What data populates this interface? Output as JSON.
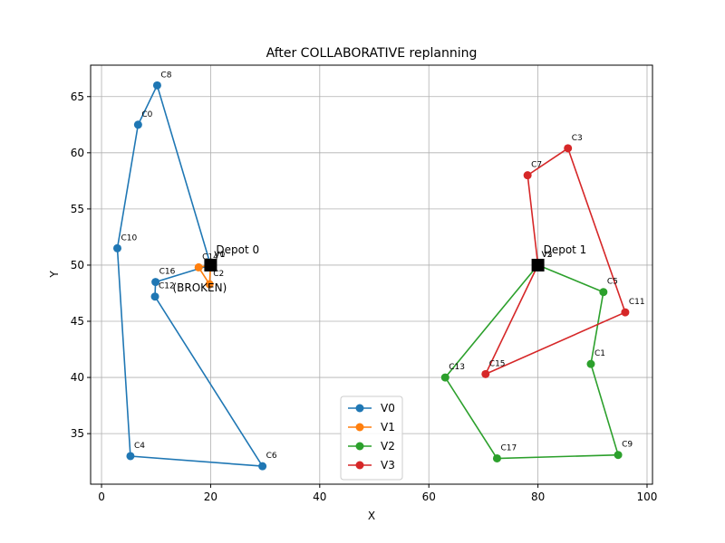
{
  "chart_data": {
    "type": "line",
    "title": "After COLLABORATIVE replanning",
    "xlabel": "X",
    "ylabel": "Y",
    "xlim": [
      -2,
      101
    ],
    "ylim": [
      30.5,
      67.8
    ],
    "xticks": [
      0,
      20,
      40,
      60,
      80,
      100
    ],
    "yticks": [
      35,
      40,
      45,
      50,
      55,
      60,
      65
    ],
    "grid": true,
    "legend_position": "bottom-center",
    "depots": [
      {
        "name": "Depot 0",
        "x": 20.0,
        "y": 50.0
      },
      {
        "name": "Depot 1",
        "x": 80.0,
        "y": 50.0
      }
    ],
    "annotations": [
      {
        "text": "(BROKEN)",
        "x": 18.0,
        "y": 48.0,
        "color": "#ff0000"
      }
    ],
    "series": [
      {
        "name": "V0",
        "color": "#1f77b4",
        "points": [
          {
            "x": 20.0,
            "y": 50.0,
            "label": ""
          },
          {
            "x": 10.2,
            "y": 66.0,
            "label": "C8"
          },
          {
            "x": 6.7,
            "y": 62.5,
            "label": "C0"
          },
          {
            "x": 2.9,
            "y": 51.5,
            "label": "C10"
          },
          {
            "x": 5.3,
            "y": 33.0,
            "label": "C4"
          },
          {
            "x": 29.5,
            "y": 32.1,
            "label": "C6"
          },
          {
            "x": 9.8,
            "y": 47.2,
            "label": "C12"
          },
          {
            "x": 9.9,
            "y": 48.5,
            "label": "C16"
          },
          {
            "x": 20.0,
            "y": 50.0,
            "label": ""
          }
        ]
      },
      {
        "name": "V1",
        "color": "#ff7f0e",
        "points": [
          {
            "x": 20.0,
            "y": 50.0,
            "label": "V0"
          },
          {
            "x": 17.8,
            "y": 49.8,
            "label": "C14"
          },
          {
            "x": 19.8,
            "y": 48.3,
            "label": "C2"
          },
          {
            "x": 20.0,
            "y": 50.0,
            "label": "V1"
          }
        ]
      },
      {
        "name": "V2",
        "color": "#2ca02c",
        "points": [
          {
            "x": 80.0,
            "y": 50.0,
            "label": "V2"
          },
          {
            "x": 92.0,
            "y": 47.6,
            "label": "C5"
          },
          {
            "x": 89.7,
            "y": 41.2,
            "label": "C1"
          },
          {
            "x": 94.7,
            "y": 33.1,
            "label": "C9"
          },
          {
            "x": 72.5,
            "y": 32.8,
            "label": "C17"
          },
          {
            "x": 63.0,
            "y": 40.0,
            "label": "C13"
          },
          {
            "x": 80.0,
            "y": 50.0,
            "label": ""
          }
        ]
      },
      {
        "name": "V3",
        "color": "#d62728",
        "points": [
          {
            "x": 80.0,
            "y": 50.0,
            "label": "V3"
          },
          {
            "x": 78.1,
            "y": 58.0,
            "label": "C7"
          },
          {
            "x": 85.5,
            "y": 60.4,
            "label": "C3"
          },
          {
            "x": 96.0,
            "y": 45.8,
            "label": "C11"
          },
          {
            "x": 70.4,
            "y": 40.3,
            "label": "C15"
          },
          {
            "x": 80.0,
            "y": 50.0,
            "label": ""
          }
        ]
      }
    ]
  }
}
